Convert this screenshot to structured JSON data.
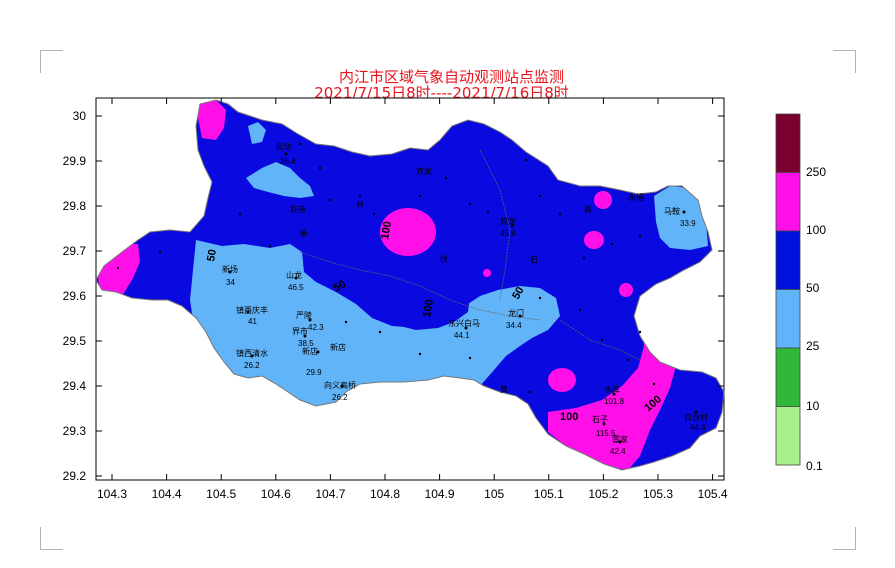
{
  "title": {
    "line1": "内江市区域气象自动观测站点监测",
    "line2": "2021/7/15日8时----2021/7/16日8时"
  },
  "axes": {
    "x_ticks": [
      "104.3",
      "104.4",
      "104.5",
      "104.6",
      "104.7",
      "104.8",
      "104.9",
      "105",
      "105.1",
      "105.2",
      "105.3",
      "105.4"
    ],
    "y_ticks": [
      "30",
      "29.9",
      "29.8",
      "29.7",
      "29.6",
      "29.5",
      "29.4",
      "29.3",
      "29.2"
    ]
  },
  "legend": {
    "labels": [
      "250",
      "100",
      "50",
      "25",
      "10",
      "0.1"
    ],
    "colors": [
      "#7a0030",
      "#ff10e8",
      "#0010dd",
      "#60b4fa",
      "#30b83a",
      "#a8f08a"
    ]
  },
  "contour_labels": [
    "100",
    "50",
    "100",
    "100",
    "100",
    "50",
    "50"
  ],
  "stations": [
    {
      "name": "风华",
      "value": "26.4"
    },
    {
      "name": "马鞍",
      "value": "33.9"
    },
    {
      "name": "新场",
      "value": "34"
    },
    {
      "name": "山龙",
      "value": "46.5"
    },
    {
      "name": "镇西庆丰",
      "value": "41"
    },
    {
      "name": "严陵",
      "value": "42.3"
    },
    {
      "name": "界市",
      "value": "38.5"
    },
    {
      "name": "新店",
      "value": "29.9"
    },
    {
      "name": "镇西清水",
      "value": "26.2"
    },
    {
      "name": "向义高桥",
      "value": "26.2"
    },
    {
      "name": "东兴白马",
      "value": "44.1"
    },
    {
      "name": "龙门",
      "value": "34.4"
    },
    {
      "name": "双龙",
      "value": "45.9"
    },
    {
      "name": "石子",
      "value": "115.5"
    },
    {
      "name": "水库",
      "value": "101.8"
    },
    {
      "name": "白合村",
      "value": "44.4"
    },
    {
      "name": "雷家",
      "value": "42.4"
    }
  ],
  "station_labels": [
    "观音",
    "新",
    "界",
    "双龙",
    "伏",
    "石",
    "新店",
    "永福",
    "黄",
    "高"
  ]
}
